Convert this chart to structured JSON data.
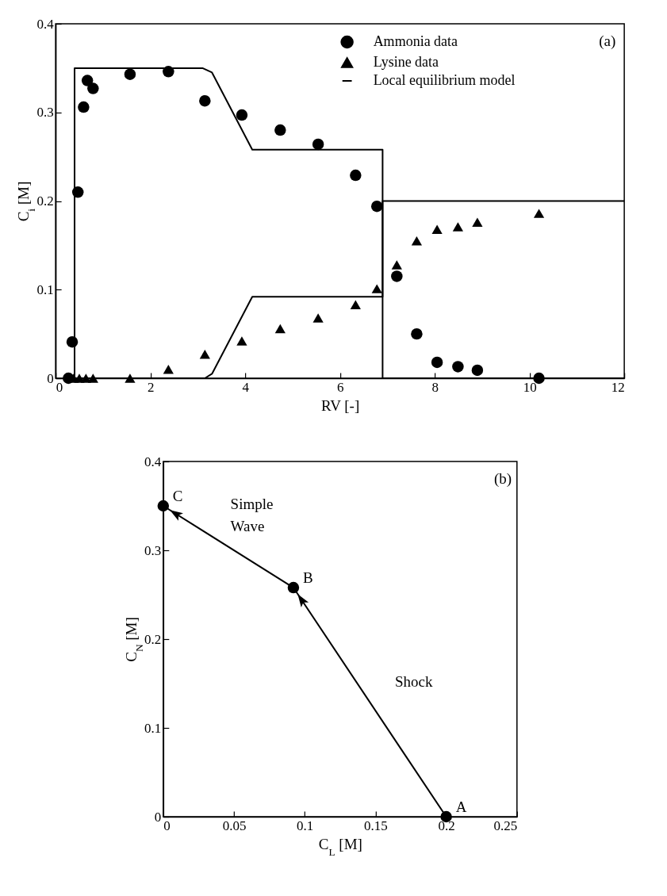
{
  "chart_data": [
    {
      "type": "scatter",
      "xlabel": "RV [-]",
      "ylabel": "C$_{i}$ [M]",
      "xlim": [
        0,
        12
      ],
      "ylim": [
        0,
        0.4
      ],
      "xticks": [
        0,
        2,
        4,
        6,
        8,
        10,
        12
      ],
      "yticks": [
        0,
        0.1,
        0.2,
        0.3,
        0.4
      ],
      "grid": false,
      "legend": "top right",
      "annotations": [
        "(a)"
      ],
      "series": [
        {
          "name": "Ammonia data",
          "type": "scatter",
          "marker": "circle",
          "color": "#000000",
          "x": [
            0.27,
            0.35,
            0.47,
            0.59,
            0.67,
            0.79,
            1.57,
            2.38,
            3.15,
            3.93,
            4.74,
            5.54,
            6.33,
            6.78,
            7.2,
            7.62,
            8.05,
            8.49,
            8.9,
            10.2
          ],
          "values": [
            0,
            0.041,
            0.21,
            0.306,
            0.336,
            0.327,
            0.343,
            0.346,
            0.313,
            0.297,
            0.28,
            0.264,
            0.229,
            0.194,
            0.115,
            0.05,
            0.018,
            0.013,
            0.009,
            0
          ]
        },
        {
          "name": "Lysine data",
          "type": "scatter",
          "marker": "triangle",
          "color": "#000000",
          "x": [
            0.38,
            0.5,
            0.64,
            0.79,
            1.57,
            2.38,
            3.15,
            3.93,
            4.74,
            5.54,
            6.33,
            6.78,
            7.2,
            7.62,
            8.05,
            8.49,
            8.9,
            10.2
          ],
          "values": [
            0,
            0,
            0,
            0,
            0,
            0.01,
            0.027,
            0.042,
            0.056,
            0.068,
            0.083,
            0.101,
            0.128,
            0.155,
            0.168,
            0.171,
            0.176,
            0.186
          ]
        },
        {
          "name": "Local equilibrium model",
          "type": "line",
          "color": "#000000",
          "x": [
            0.4,
            0.4,
            3.1,
            3.3,
            4.15,
            6.9,
            6.9,
            12
          ],
          "values": [
            0,
            0.35,
            0.35,
            0.345,
            0.258,
            0.258,
            0,
            0
          ]
        },
        {
          "type": "line",
          "color": "#000000",
          "x": [
            0.4,
            3.15,
            3.3,
            4.15,
            6.9,
            6.9,
            12
          ],
          "values": [
            0,
            0,
            0.005,
            0.092,
            0.092,
            0.2,
            0.2
          ]
        }
      ]
    },
    {
      "type": "line",
      "marker": "circle",
      "xlabel": "C$_{L}$ [M]",
      "ylabel": "C$_{N}$ [M]",
      "xlim": [
        0,
        0.25
      ],
      "ylim": [
        0,
        0.4
      ],
      "xticks": [
        0,
        0.05,
        0.1,
        0.15,
        0.2,
        0.25
      ],
      "yticks": [
        0,
        0.1,
        0.2,
        0.3,
        0.4
      ],
      "grid": false,
      "annotations": [
        "(b)",
        {
          "text": "A",
          "x": 0.2,
          "y": 0
        },
        {
          "text": "B",
          "x": 0.092,
          "y": 0.258
        },
        {
          "text": "C",
          "x": 0,
          "y": 0.35
        },
        "Simple Wave",
        "Shock"
      ],
      "series": [
        {
          "color": "#000000",
          "x": [
            0.2,
            0.092,
            0
          ],
          "values": [
            0,
            0.258,
            0.35
          ]
        }
      ]
    }
  ]
}
